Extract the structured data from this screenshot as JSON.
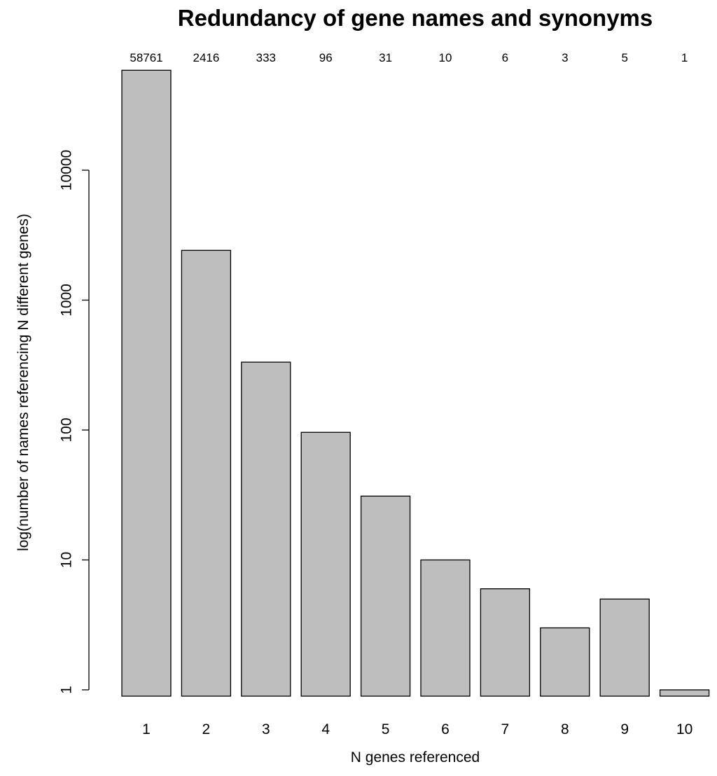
{
  "chart_data": {
    "type": "bar",
    "title": "Redundancy of gene names and synonyms",
    "xlabel": "N genes referenced",
    "ylabel": "log(number of names referencing N different genes)",
    "y_scale": "log",
    "ylim": [
      1,
      58761
    ],
    "y_ticks": [
      1,
      10,
      100,
      1000,
      10000
    ],
    "y_tick_labels": [
      "1",
      "10",
      "100",
      "1000",
      "10000"
    ],
    "categories": [
      "1",
      "2",
      "3",
      "4",
      "5",
      "6",
      "7",
      "8",
      "9",
      "10"
    ],
    "values": [
      58761,
      2416,
      333,
      96,
      31,
      10,
      6,
      3,
      5,
      1
    ],
    "data_labels": [
      "58761",
      "2416",
      "333",
      "96",
      "31",
      "10",
      "6",
      "3",
      "5",
      "1"
    ],
    "bar_color": "#bebebe",
    "bar_edge_color": "#000000",
    "grid": false,
    "legend": "none"
  }
}
